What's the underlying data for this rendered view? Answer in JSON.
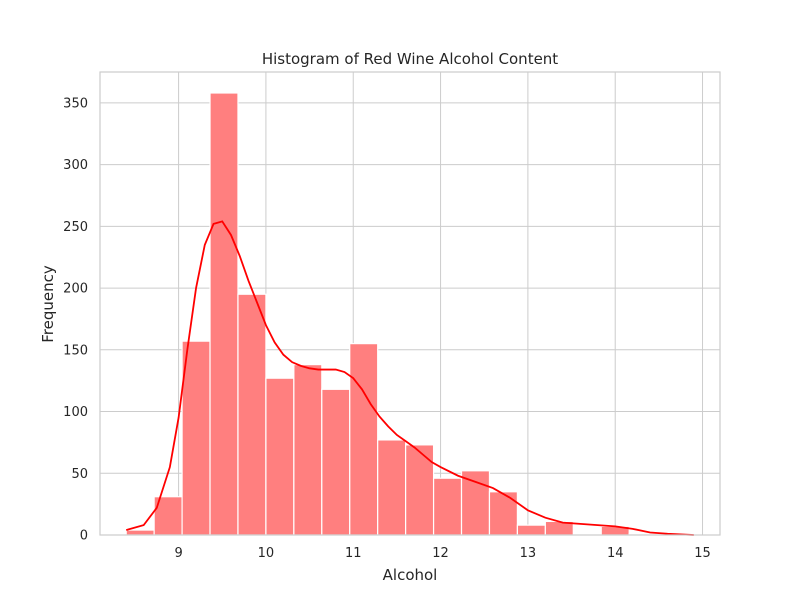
{
  "chart_data": {
    "type": "bar",
    "title": "Histogram of Red Wine Alcohol Content",
    "xlabel": "Alcohol",
    "ylabel": "Frequency",
    "xlim": [
      8.1,
      15.2
    ],
    "ylim": [
      0,
      375
    ],
    "xticks": [
      "9",
      "10",
      "11",
      "12",
      "13",
      "14",
      "15"
    ],
    "yticks": [
      "0",
      "50",
      "100",
      "150",
      "200",
      "250",
      "300",
      "350"
    ],
    "grid": true,
    "bar_color": "#ff7f7f",
    "kde_color": "#ff0000",
    "bins": [
      {
        "x0": 8.4,
        "x1": 8.72,
        "count": 4
      },
      {
        "x0": 8.72,
        "x1": 9.04,
        "count": 31
      },
      {
        "x0": 9.04,
        "x1": 9.36,
        "count": 157
      },
      {
        "x0": 9.36,
        "x1": 9.68,
        "count": 358
      },
      {
        "x0": 9.68,
        "x1": 10.0,
        "count": 195
      },
      {
        "x0": 10.0,
        "x1": 10.32,
        "count": 127
      },
      {
        "x0": 10.32,
        "x1": 10.64,
        "count": 138
      },
      {
        "x0": 10.64,
        "x1": 10.96,
        "count": 118
      },
      {
        "x0": 10.96,
        "x1": 11.28,
        "count": 155
      },
      {
        "x0": 11.28,
        "x1": 11.6,
        "count": 77
      },
      {
        "x0": 11.6,
        "x1": 11.92,
        "count": 73
      },
      {
        "x0": 11.92,
        "x1": 12.24,
        "count": 46
      },
      {
        "x0": 12.24,
        "x1": 12.56,
        "count": 52
      },
      {
        "x0": 12.56,
        "x1": 12.88,
        "count": 35
      },
      {
        "x0": 12.88,
        "x1": 13.2,
        "count": 8
      },
      {
        "x0": 13.2,
        "x1": 13.52,
        "count": 11
      },
      {
        "x0": 13.52,
        "x1": 13.84,
        "count": 0
      },
      {
        "x0": 13.84,
        "x1": 14.16,
        "count": 7
      },
      {
        "x0": 14.16,
        "x1": 14.48,
        "count": 1
      },
      {
        "x0": 14.48,
        "x1": 14.8,
        "count": 1
      }
    ],
    "kde": {
      "x": [
        8.4,
        8.6,
        8.75,
        8.9,
        9.0,
        9.1,
        9.2,
        9.3,
        9.4,
        9.5,
        9.6,
        9.7,
        9.8,
        9.9,
        10.0,
        10.1,
        10.2,
        10.3,
        10.4,
        10.5,
        10.6,
        10.7,
        10.8,
        10.9,
        11.0,
        11.1,
        11.2,
        11.3,
        11.4,
        11.5,
        11.6,
        11.7,
        11.8,
        11.9,
        12.0,
        12.2,
        12.4,
        12.6,
        12.8,
        13.0,
        13.2,
        13.4,
        13.6,
        13.8,
        14.0,
        14.2,
        14.4,
        14.6,
        14.9
      ],
      "y": [
        4,
        8,
        22,
        55,
        95,
        150,
        200,
        235,
        252,
        254,
        243,
        226,
        206,
        188,
        170,
        156,
        146,
        140,
        137,
        135,
        134,
        134,
        134,
        132,
        127,
        118,
        106,
        96,
        88,
        81,
        76,
        71,
        65,
        59,
        55,
        48,
        43,
        38,
        30,
        20,
        14,
        10,
        9,
        8,
        7,
        5,
        2,
        1,
        0
      ]
    }
  }
}
